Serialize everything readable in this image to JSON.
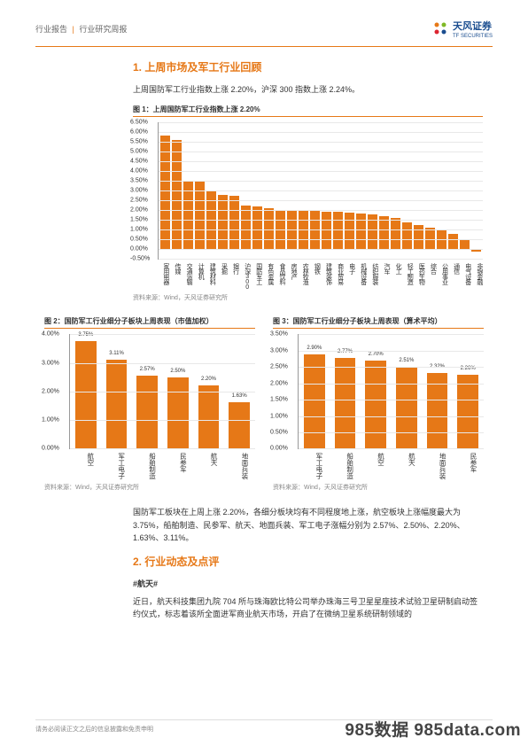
{
  "header": {
    "breadcrumb_left": "行业报告",
    "breadcrumb_right": "行业研究周报",
    "logo_main": "天风证券",
    "logo_sub": "TF SECURITIES"
  },
  "section1_title": "1. 上周市场及军工行业回顾",
  "section1_para": "上周国防军工行业指数上涨 2.20%，沪深 300 指数上涨 2.24%。",
  "fig1": {
    "caption": "图 1：上周国防军工行业指数上涨 2.20%",
    "type": "bar",
    "ylim": [
      -0.5,
      6.5
    ],
    "ytick_step": 0.5,
    "yticks": [
      "6.50%",
      "6.00%",
      "5.50%",
      "5.00%",
      "4.50%",
      "4.00%",
      "3.50%",
      "3.00%",
      "2.50%",
      "2.00%",
      "1.50%",
      "1.00%",
      "0.50%",
      "0.00%",
      "-0.50%"
    ],
    "bar_color": "#e67817",
    "grid_color": "#e8e8e8",
    "categories": [
      "家用电器",
      "传媒",
      "交通运输",
      "计算机",
      "建筑材料",
      "采掘",
      "银行",
      "沪深300",
      "国防军工",
      "有色金属",
      "食品饮料",
      "房地产",
      "农林牧渔",
      "钢铁",
      "建筑装饰",
      "商业贸易",
      "电子",
      "机械设备",
      "纺织服装",
      "汽车",
      "化工",
      "轻工制造",
      "医药生物",
      "综合",
      "公用事业",
      "通信",
      "电气设备",
      "非银金融"
    ],
    "values": [
      5.85,
      5.6,
      3.5,
      3.5,
      3.0,
      2.8,
      2.75,
      2.24,
      2.2,
      2.1,
      2.0,
      2.0,
      2.0,
      2.0,
      1.95,
      1.95,
      1.9,
      1.85,
      1.8,
      1.7,
      1.6,
      1.4,
      1.25,
      1.1,
      1.0,
      0.8,
      0.5,
      -0.1
    ],
    "source": "资料来源：Wind，天风证券研究所"
  },
  "fig2": {
    "caption": "图 2：国防军工行业细分子板块上周表现（市值加权）",
    "type": "bar",
    "ylim": [
      0,
      4
    ],
    "yticks": [
      "4.00%",
      "3.00%",
      "2.00%",
      "1.00%",
      "0.00%"
    ],
    "bar_color": "#e67817",
    "categories": [
      "航空",
      "军工电子",
      "船舶制造",
      "民参军",
      "航天",
      "地面兵装"
    ],
    "values": [
      3.75,
      3.11,
      2.57,
      2.5,
      2.2,
      1.63
    ],
    "value_labels": [
      "3.75%",
      "3.11%",
      "2.57%",
      "2.50%",
      "2.20%",
      "1.63%"
    ],
    "source": "资料来源：Wind，天风证券研究所"
  },
  "fig3": {
    "caption": "图 3：国防军工行业细分子板块上周表现（算术平均）",
    "type": "bar",
    "ylim": [
      0,
      3.5
    ],
    "yticks": [
      "3.50%",
      "3.00%",
      "2.50%",
      "2.00%",
      "1.50%",
      "1.00%",
      "0.50%",
      "0.00%"
    ],
    "bar_color": "#e67817",
    "categories": [
      "军工电子",
      "船舶制造",
      "航空",
      "航天",
      "地面兵装",
      "民参军"
    ],
    "values": [
      2.9,
      2.77,
      2.7,
      2.51,
      2.32,
      2.26
    ],
    "value_labels": [
      "2.90%",
      "2.77%",
      "2.70%",
      "2.51%",
      "2.32%",
      "2.26%"
    ],
    "source": "资料来源：Wind，天风证券研究所"
  },
  "mid_para": "国防军工板块在上周上涨 2.20%，各细分板块均有不同程度地上涨，航空板块上涨幅度最大为 3.75%，船舶制造、民参军、航天、地面兵装、军工电子涨幅分别为 2.57%、2.50%、2.20%、1.63%、3.11%。",
  "section2_title": "2. 行业动态及点评",
  "subsection": "#航天#",
  "section2_para": "近日，航天科技集团九院 704 所与珠海欧比特公司举办珠海三号卫星星座技术试验卫星研制启动签约仪式，标志着该所全面进军商业航天市场，开启了在微纳卫星系统研制领域的",
  "footer_text": "请务必阅读正文之后的信息披露和免责申明",
  "watermark": "985数据 985data.com"
}
